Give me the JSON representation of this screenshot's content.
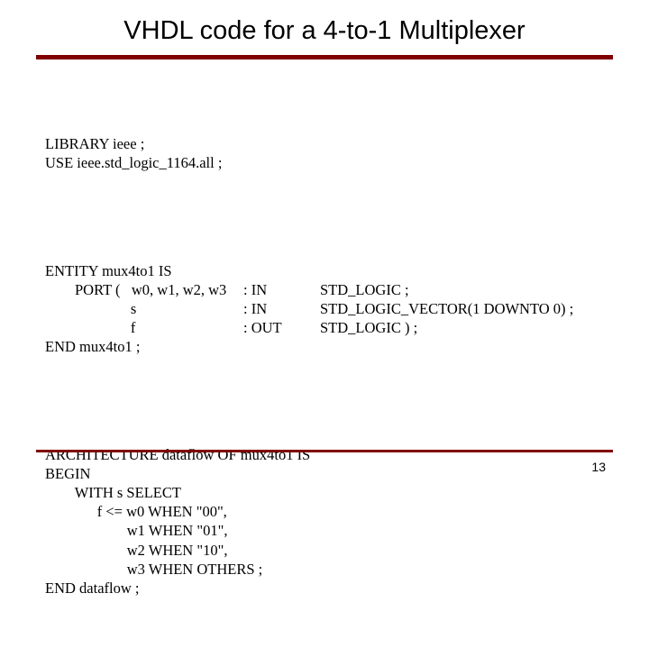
{
  "title": "VHDL code for a 4-to-1 Multiplexer",
  "library": {
    "line1": "LIBRARY ieee ;",
    "line2": "USE ieee.std_logic_1164.all ;"
  },
  "entity": {
    "line1": "ENTITY mux4to1 IS",
    "port_indent": "        PORT (   ",
    "sub_indent": "                       ",
    "port1_sig": "w0, w1, w2, w3",
    "port1_dir": ": IN",
    "port1_type": "STD_LOGIC ;",
    "port2_sig": "s",
    "port2_dir": ": IN",
    "port2_type": "STD_LOGIC_VECTOR(1 DOWNTO 0) ;",
    "port3_sig": "f",
    "port3_dir": ": OUT",
    "port3_type": "STD_LOGIC ) ;",
    "end": "END mux4to1 ;"
  },
  "architecture": {
    "line1": "ARCHITECTURE dataflow OF mux4to1 IS",
    "line2": "BEGIN",
    "line3": "        WITH s SELECT",
    "line4": "              f <= w0 WHEN \"00\",",
    "line5": "                      w1 WHEN \"01\",",
    "line6": "                      w2 WHEN \"10\",",
    "line7": "                      w3 WHEN OTHERS ;",
    "line8": "END dataflow ;"
  },
  "page_number": "13",
  "colors": {
    "accent": "#800000",
    "text": "#000000",
    "background": "#ffffff"
  },
  "typography": {
    "title_font": "Arial",
    "title_size_pt": 22,
    "body_font": "Times New Roman",
    "body_size_pt": 12
  }
}
